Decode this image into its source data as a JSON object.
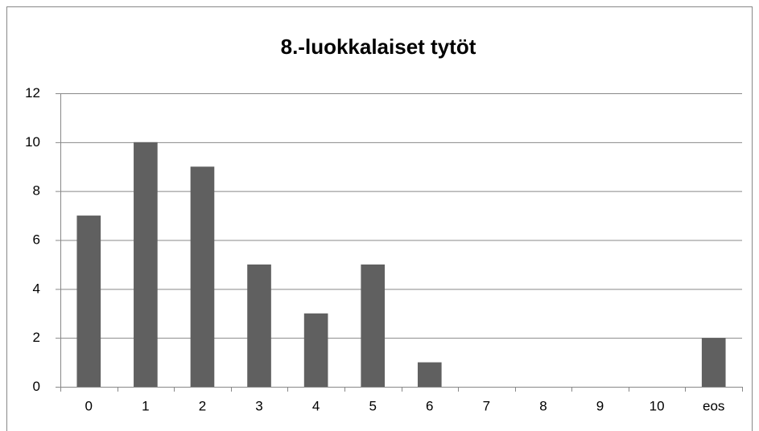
{
  "chart_data": {
    "type": "bar",
    "title": "8.-luokkalaiset tytöt",
    "categories": [
      "0",
      "1",
      "2",
      "3",
      "4",
      "5",
      "6",
      "7",
      "8",
      "9",
      "10",
      "eos"
    ],
    "values": [
      7,
      10,
      9,
      5,
      3,
      5,
      1,
      0,
      0,
      0,
      0,
      2
    ],
    "color": "#606060",
    "ylim": [
      0,
      12
    ],
    "yticks": [
      0,
      2,
      4,
      6,
      8,
      10,
      12
    ],
    "grid": true
  }
}
